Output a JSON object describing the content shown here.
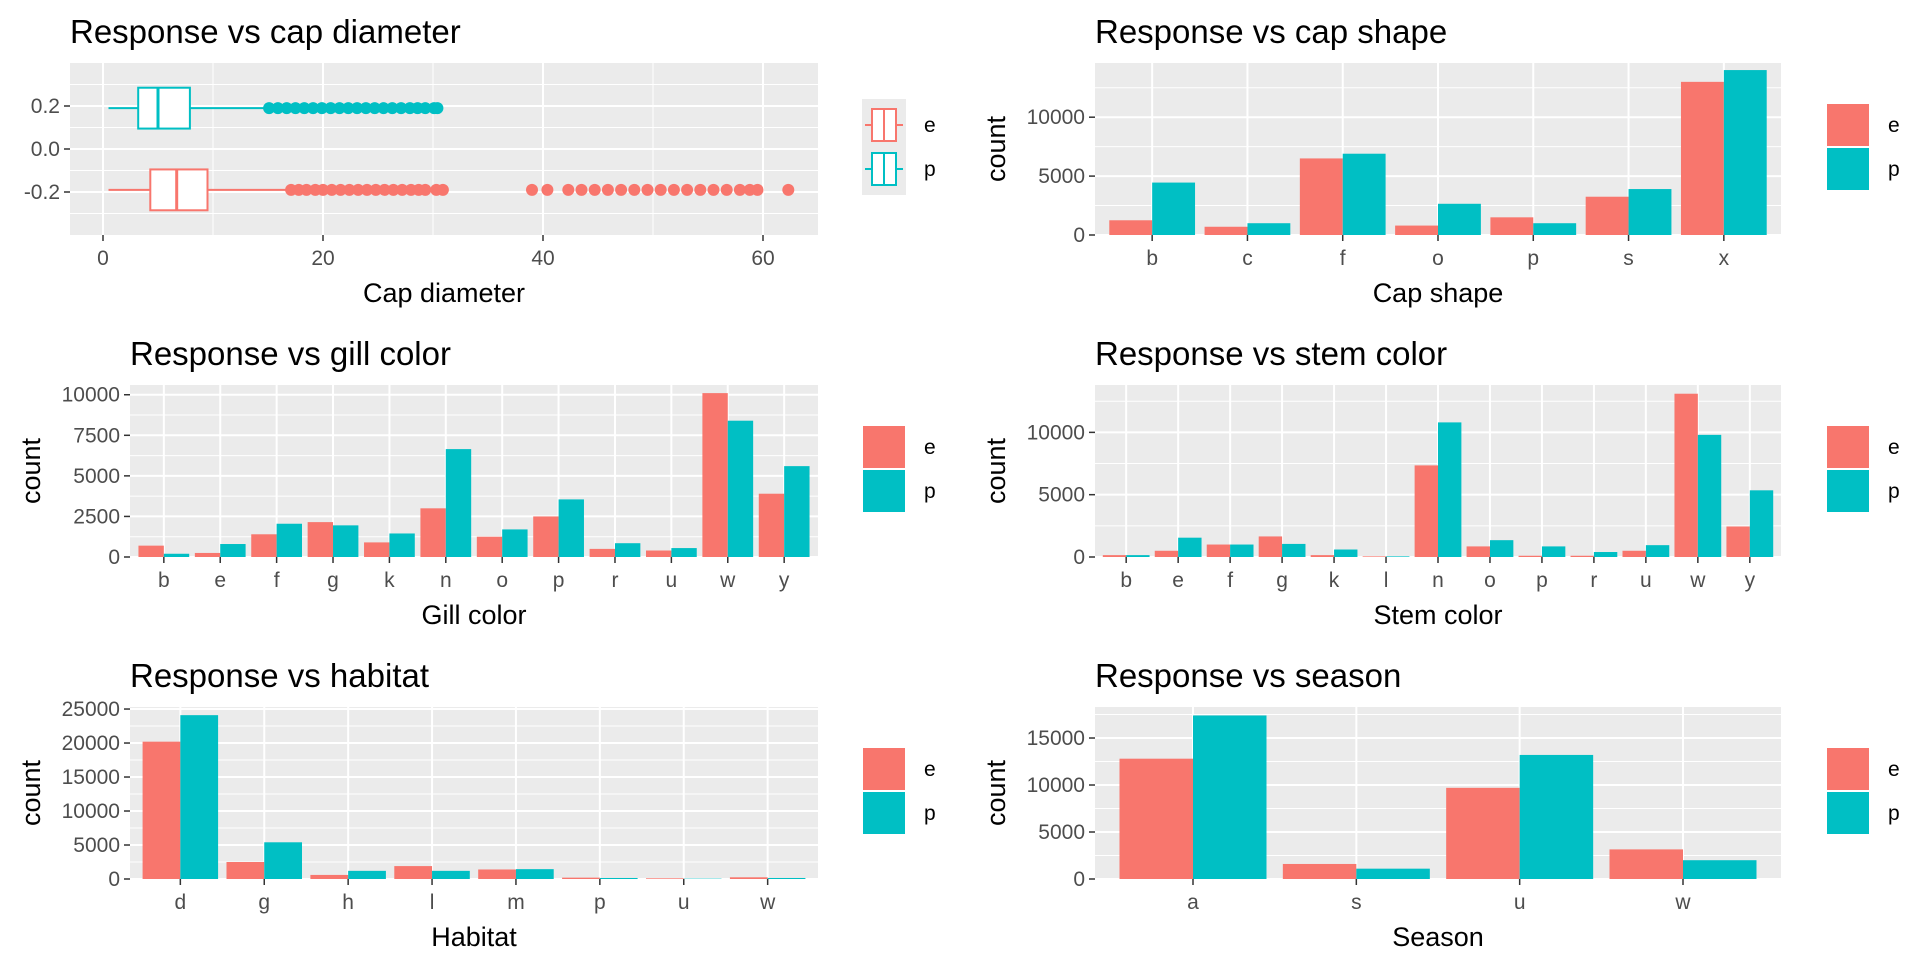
{
  "colors": {
    "e": "#F8766D",
    "p": "#00BFC4",
    "panel": "#EBEBEB",
    "grid": "#FFFFFF",
    "tick": "#333333",
    "tick_text": "#4D4D4D"
  },
  "legend": {
    "items": [
      "e",
      "p"
    ]
  },
  "chart_data": [
    {
      "type": "boxplot",
      "title": "Response vs cap diameter",
      "xlabel": "Cap diameter",
      "ylabel": "",
      "xlim": [
        -3,
        65
      ],
      "ylim": [
        -0.4,
        0.4
      ],
      "xticks": [
        0,
        20,
        40,
        60
      ],
      "yticks": [
        0.2,
        0.0,
        -0.2
      ],
      "ytick_labels": [
        "0.2",
        "0.0",
        "-0.2"
      ],
      "series": [
        {
          "name": "e",
          "y": -0.19,
          "min": 0.5,
          "q1": 4.3,
          "median": 6.7,
          "q3": 9.5,
          "max": 17.0,
          "outliers": [
            17.1,
            17.8,
            18.5,
            19.3,
            20.0,
            20.8,
            21.6,
            22.4,
            23.2,
            24.0,
            24.8,
            25.6,
            26.4,
            27.2,
            28.0,
            28.7,
            29.3,
            30.3,
            30.9,
            39.0,
            40.4,
            42.3,
            43.5,
            44.7,
            45.9,
            47.1,
            48.3,
            49.5,
            50.7,
            51.9,
            53.1,
            54.3,
            55.5,
            56.7,
            57.9,
            58.8,
            59.5,
            62.3
          ]
        },
        {
          "name": "p",
          "y": 0.19,
          "min": 0.5,
          "q1": 3.2,
          "median": 5.0,
          "q3": 7.9,
          "max": 15.1,
          "outliers": [
            15.1,
            15.9,
            16.7,
            17.5,
            18.3,
            19.1,
            19.9,
            20.7,
            21.5,
            22.3,
            23.1,
            23.9,
            24.7,
            25.5,
            26.3,
            27.1,
            27.9,
            28.6,
            29.3,
            30.1,
            30.4
          ]
        }
      ]
    },
    {
      "type": "bar",
      "title": "Response vs cap shape",
      "xlabel": "Cap shape",
      "ylabel": "count",
      "categories": [
        "b",
        "c",
        "f",
        "o",
        "p",
        "s",
        "x"
      ],
      "ylim": [
        0,
        14600
      ],
      "yticks": [
        0,
        5000,
        10000
      ],
      "series": [
        {
          "name": "e",
          "values": [
            1250,
            700,
            6500,
            800,
            1500,
            3250,
            13000
          ]
        },
        {
          "name": "p",
          "values": [
            4450,
            1000,
            6900,
            2650,
            1000,
            3900,
            14000
          ]
        }
      ]
    },
    {
      "type": "bar",
      "title": "Response vs gill color",
      "xlabel": "Gill color",
      "ylabel": "count",
      "categories": [
        "b",
        "e",
        "f",
        "g",
        "k",
        "n",
        "o",
        "p",
        "r",
        "u",
        "w",
        "y"
      ],
      "ylim": [
        0,
        10600
      ],
      "yticks": [
        0,
        2500,
        5000,
        7500,
        10000
      ],
      "series": [
        {
          "name": "e",
          "values": [
            700,
            250,
            1400,
            2150,
            900,
            3000,
            1250,
            2500,
            500,
            400,
            10100,
            3900
          ]
        },
        {
          "name": "p",
          "values": [
            200,
            800,
            2050,
            1950,
            1450,
            6650,
            1700,
            3550,
            850,
            550,
            8400,
            5600
          ]
        }
      ]
    },
    {
      "type": "bar",
      "title": "Response vs stem color",
      "xlabel": "Stem color",
      "ylabel": "count",
      "categories": [
        "b",
        "e",
        "f",
        "g",
        "k",
        "l",
        "n",
        "o",
        "p",
        "r",
        "u",
        "w",
        "y"
      ],
      "ylim": [
        0,
        13800
      ],
      "yticks": [
        0,
        5000,
        10000
      ],
      "series": [
        {
          "name": "e",
          "values": [
            150,
            500,
            1000,
            1650,
            150,
            50,
            7350,
            850,
            100,
            100,
            500,
            13100,
            2450
          ]
        },
        {
          "name": "p",
          "values": [
            150,
            1550,
            1000,
            1050,
            600,
            50,
            10800,
            1350,
            850,
            400,
            950,
            9800,
            5350
          ]
        }
      ]
    },
    {
      "type": "bar",
      "title": "Response vs habitat",
      "xlabel": "Habitat",
      "ylabel": "count",
      "categories": [
        "d",
        "g",
        "h",
        "l",
        "m",
        "p",
        "u",
        "w"
      ],
      "ylim": [
        0,
        25300
      ],
      "yticks": [
        0,
        5000,
        10000,
        15000,
        20000,
        25000
      ],
      "series": [
        {
          "name": "e",
          "values": [
            20200,
            2500,
            600,
            1900,
            1400,
            200,
            100,
            250
          ]
        },
        {
          "name": "p",
          "values": [
            24100,
            5400,
            1200,
            1200,
            1450,
            150,
            50,
            150
          ]
        }
      ]
    },
    {
      "type": "bar",
      "title": "Response vs season",
      "xlabel": "Season",
      "ylabel": "count",
      "categories": [
        "a",
        "s",
        "u",
        "w"
      ],
      "ylim": [
        0,
        18300
      ],
      "yticks": [
        0,
        5000,
        10000,
        15000
      ],
      "series": [
        {
          "name": "e",
          "values": [
            12800,
            1600,
            9700,
            3150
          ]
        },
        {
          "name": "p",
          "values": [
            17400,
            1100,
            13200,
            2000
          ]
        }
      ]
    }
  ]
}
